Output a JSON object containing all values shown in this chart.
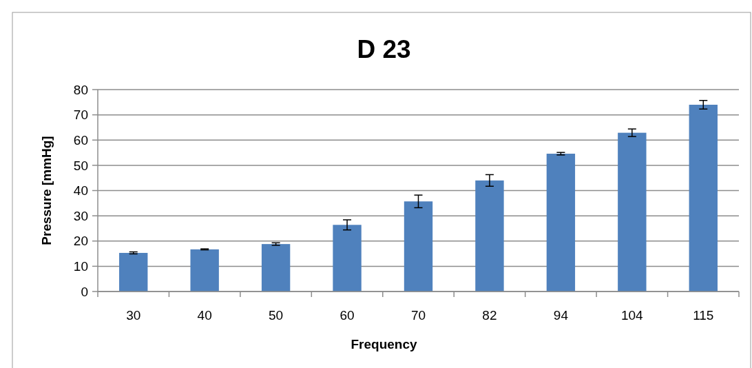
{
  "chart_data": {
    "type": "bar",
    "title": "D 23",
    "xlabel": "Frequency",
    "ylabel": "Pressure [mmHg]",
    "categories": [
      "30",
      "40",
      "50",
      "60",
      "70",
      "82",
      "94",
      "104",
      "115"
    ],
    "values": [
      15.3,
      16.7,
      18.8,
      26.4,
      35.7,
      44.0,
      54.6,
      62.9,
      74.0
    ],
    "errors": [
      0.4,
      0.2,
      0.5,
      2.0,
      2.5,
      2.3,
      0.5,
      1.5,
      1.7
    ],
    "color": "#4f81bd",
    "ylim": [
      0,
      80
    ],
    "yticks": [
      0,
      10,
      20,
      30,
      40,
      50,
      60,
      70,
      80
    ],
    "grid": "y"
  }
}
